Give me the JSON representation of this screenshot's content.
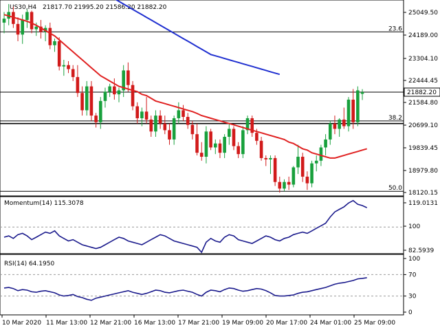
{
  "header": {
    "symbol": "US30,H4",
    "ohlc": "21817.70 21995.20 21586.20 21882.20"
  },
  "colors": {
    "bull": "#18a03c",
    "bear": "#d11a1a",
    "sma_fast": "#e02020",
    "sma_slow": "#1f2fd0",
    "indicator": "#1a1a8c",
    "price_tag_bg": "#ffffff"
  },
  "chart_data": [
    {
      "type": "candlestick",
      "title": "US30,H4",
      "yticks": [
        "25049.50",
        "24189.00",
        "23304.10",
        "22444.45",
        "21584.80",
        "20699.10",
        "19839.45",
        "18979.80",
        "18120.15"
      ],
      "ylim": [
        18000,
        25300
      ],
      "x_labels": [
        "10 Mar 2020",
        "11 Mar 13:00",
        "12 Mar 21:00",
        "16 Mar 13:00",
        "17 Mar 21:00",
        "19 Mar 09:00",
        "20 Mar 17:00",
        "24 Mar 01:00",
        "25 Mar 09:00"
      ],
      "current_price": "21882.20",
      "candles": [
        [
          24500,
          24900,
          24100,
          24650
        ],
        [
          24650,
          25200,
          24400,
          24900
        ],
        [
          24900,
          25100,
          24300,
          24450
        ],
        [
          24450,
          24700,
          23800,
          24050
        ],
        [
          24050,
          24800,
          23700,
          24600
        ],
        [
          24600,
          25000,
          24300,
          24900
        ],
        [
          24900,
          24950,
          24100,
          24250
        ],
        [
          24250,
          24500,
          24000,
          24350
        ],
        [
          24350,
          24600,
          23900,
          24150
        ],
        [
          24150,
          24400,
          23800,
          24300
        ],
        [
          24300,
          24500,
          23500,
          23650
        ],
        [
          23650,
          23900,
          23400,
          23800
        ],
        [
          23800,
          23950,
          22700,
          22850
        ],
        [
          22850,
          23100,
          22500,
          22900
        ],
        [
          22900,
          23050,
          22600,
          22750
        ],
        [
          22750,
          22900,
          22300,
          22450
        ],
        [
          22450,
          22900,
          21700,
          21850
        ],
        [
          21850,
          22100,
          21000,
          21200
        ],
        [
          21200,
          22300,
          21000,
          22100
        ],
        [
          22100,
          22300,
          20800,
          21000
        ],
        [
          21000,
          21100,
          20550,
          20750
        ],
        [
          20750,
          21700,
          20500,
          21550
        ],
        [
          21550,
          22050,
          21300,
          21900
        ],
        [
          21900,
          22200,
          21700,
          22100
        ],
        [
          22100,
          22400,
          21600,
          21800
        ],
        [
          21800,
          22050,
          21500,
          21950
        ],
        [
          21950,
          22900,
          21700,
          22700
        ],
        [
          22700,
          23000,
          21900,
          22150
        ],
        [
          22150,
          22300,
          21200,
          21350
        ],
        [
          21350,
          21500,
          20700,
          20900
        ],
        [
          20900,
          21300,
          20600,
          21150
        ],
        [
          21150,
          21700,
          20700,
          20850
        ],
        [
          20850,
          21000,
          20200,
          20400
        ],
        [
          20400,
          21200,
          20200,
          21000
        ],
        [
          21000,
          21200,
          20500,
          20700
        ],
        [
          20700,
          21000,
          20300,
          20450
        ],
        [
          20450,
          20700,
          19900,
          20100
        ],
        [
          20100,
          21000,
          19900,
          20900
        ],
        [
          20900,
          21500,
          20700,
          21200
        ],
        [
          21200,
          21400,
          20800,
          20950
        ],
        [
          20950,
          21100,
          20500,
          20650
        ],
        [
          20650,
          20800,
          20100,
          20300
        ],
        [
          20300,
          20700,
          19500,
          19600
        ],
        [
          19600,
          20000,
          19300,
          19450
        ],
        [
          19450,
          20600,
          19200,
          20400
        ],
        [
          20400,
          20500,
          19700,
          19800
        ],
        [
          19800,
          20100,
          19550,
          19950
        ],
        [
          19950,
          20100,
          19400,
          19600
        ],
        [
          19600,
          20300,
          19400,
          20200
        ],
        [
          20200,
          20700,
          19900,
          20500
        ],
        [
          20500,
          20600,
          19700,
          19850
        ],
        [
          19850,
          20000,
          19400,
          19550
        ],
        [
          19550,
          20600,
          19400,
          20450
        ],
        [
          20450,
          21000,
          20300,
          20900
        ],
        [
          20900,
          21000,
          20200,
          20350
        ],
        [
          20350,
          20500,
          19900,
          20050
        ],
        [
          20050,
          20200,
          19300,
          19400
        ],
        [
          19400,
          19500,
          19100,
          19350
        ],
        [
          19350,
          19500,
          18800,
          19400
        ],
        [
          19400,
          19500,
          18350,
          18500
        ],
        [
          18500,
          18700,
          18100,
          18250
        ],
        [
          18250,
          18600,
          18150,
          18500
        ],
        [
          18500,
          18700,
          18200,
          18400
        ],
        [
          18400,
          19100,
          18300,
          19050
        ],
        [
          19050,
          19900,
          18800,
          19450
        ],
        [
          19450,
          19600,
          18500,
          18700
        ],
        [
          18700,
          18900,
          18200,
          18450
        ],
        [
          18450,
          19300,
          18300,
          19200
        ],
        [
          19200,
          19500,
          18900,
          19300
        ],
        [
          19300,
          19900,
          19100,
          19800
        ],
        [
          19800,
          20300,
          19500,
          20100
        ],
        [
          20100,
          20800,
          19900,
          20700
        ],
        [
          20700,
          21000,
          20300,
          20500
        ],
        [
          20500,
          20900,
          20200,
          20850
        ],
        [
          20850,
          21300,
          20500,
          20600
        ],
        [
          20600,
          21700,
          20400,
          21600
        ],
        [
          21600,
          22000,
          20500,
          20750
        ],
        [
          20750,
          22100,
          20600,
          21950
        ],
        [
          21817.7,
          21995.2,
          21586.2,
          21882.2
        ]
      ],
      "series": [
        {
          "name": "SMA fast",
          "values": [
            24800,
            24750,
            24700,
            24650,
            24600,
            24550,
            24480,
            24400,
            24300,
            24200,
            24100,
            24000,
            23850,
            23700,
            23550,
            23400,
            23250,
            23100,
            22950,
            22800,
            22650,
            22500,
            22400,
            22300,
            22200,
            22100,
            22050,
            22000,
            21950,
            21900,
            21800,
            21750,
            21650,
            21550,
            21500,
            21450,
            21400,
            21350,
            21300,
            21250,
            21200,
            21150,
            21080,
            21000,
            20950,
            20900,
            20850,
            20800,
            20750,
            20700,
            20650,
            20600,
            20550,
            20500,
            20450,
            20400,
            20350,
            20300,
            20250,
            20200,
            20150,
            20100,
            20000,
            19950,
            19850,
            19750,
            19700,
            19600,
            19550,
            19500,
            19450,
            19400,
            19400,
            19450,
            19500,
            19550,
            19600,
            19650,
            19700,
            19750
          ]
        },
        {
          "name": "SMA slow",
          "values": [
            null,
            null,
            null,
            null,
            null,
            null,
            null,
            null,
            null,
            null,
            null,
            null,
            null,
            null,
            null,
            null,
            null,
            null,
            null,
            null,
            null,
            null,
            null,
            null,
            25400,
            25300,
            25200,
            25100,
            25000,
            24900,
            24800,
            24700,
            24600,
            24500,
            24400,
            24300,
            24200,
            24100,
            24000,
            23900,
            23800,
            23700,
            23600,
            23500,
            23400,
            23300,
            23250,
            23200,
            23150,
            23100,
            23050,
            23000,
            22950,
            22900,
            22850,
            22800,
            22750,
            22700,
            22650,
            22600,
            22550
          ]
        }
      ],
      "levels": [
        {
          "label": "23.6",
          "value": 24150
        },
        {
          "label": "38.2",
          "value": 20800
        },
        {
          "label": "50.0",
          "value": 18150
        }
      ],
      "horizontal_lines": [
        21882.2,
        20700
      ]
    },
    {
      "type": "line",
      "title": "Momentum(14) 115.3078",
      "yticks": [
        "119.0131",
        "100",
        "82.5939"
      ],
      "ylim": [
        80,
        123
      ],
      "level": 100,
      "values": [
        92,
        93,
        91,
        94,
        95,
        93,
        90,
        92,
        94,
        96,
        95,
        97,
        93,
        91,
        89,
        90,
        88,
        86,
        85,
        84,
        83,
        84,
        86,
        88,
        90,
        92,
        91,
        89,
        88,
        87,
        86,
        88,
        90,
        92,
        94,
        93,
        91,
        89,
        88,
        87,
        86,
        85,
        84,
        80,
        88,
        91,
        89,
        88,
        92,
        94,
        93,
        90,
        89,
        88,
        87,
        89,
        91,
        93,
        92,
        90,
        89,
        91,
        92,
        94,
        95,
        96,
        95,
        97,
        99,
        101,
        103,
        108,
        112,
        114,
        116,
        119,
        121,
        118,
        117,
        115.3078
      ]
    },
    {
      "type": "line",
      "title": "RSI(14) 64.1950",
      "yticks": [
        "100",
        "70",
        "30",
        "0"
      ],
      "ylim": [
        0,
        100
      ],
      "levels": [
        70,
        30
      ],
      "values": [
        45,
        46,
        44,
        40,
        42,
        41,
        38,
        37,
        39,
        40,
        38,
        36,
        32,
        30,
        31,
        33,
        29,
        27,
        24,
        22,
        26,
        28,
        30,
        32,
        34,
        36,
        38,
        40,
        37,
        35,
        33,
        35,
        38,
        41,
        40,
        37,
        36,
        38,
        40,
        41,
        39,
        37,
        33,
        30,
        37,
        41,
        40,
        38,
        42,
        45,
        44,
        41,
        39,
        40,
        42,
        44,
        43,
        40,
        36,
        31,
        30,
        30,
        31,
        32,
        35,
        37,
        38,
        40,
        42,
        44,
        46,
        49,
        52,
        54,
        55,
        57,
        59,
        62,
        63,
        64.195
      ]
    }
  ]
}
